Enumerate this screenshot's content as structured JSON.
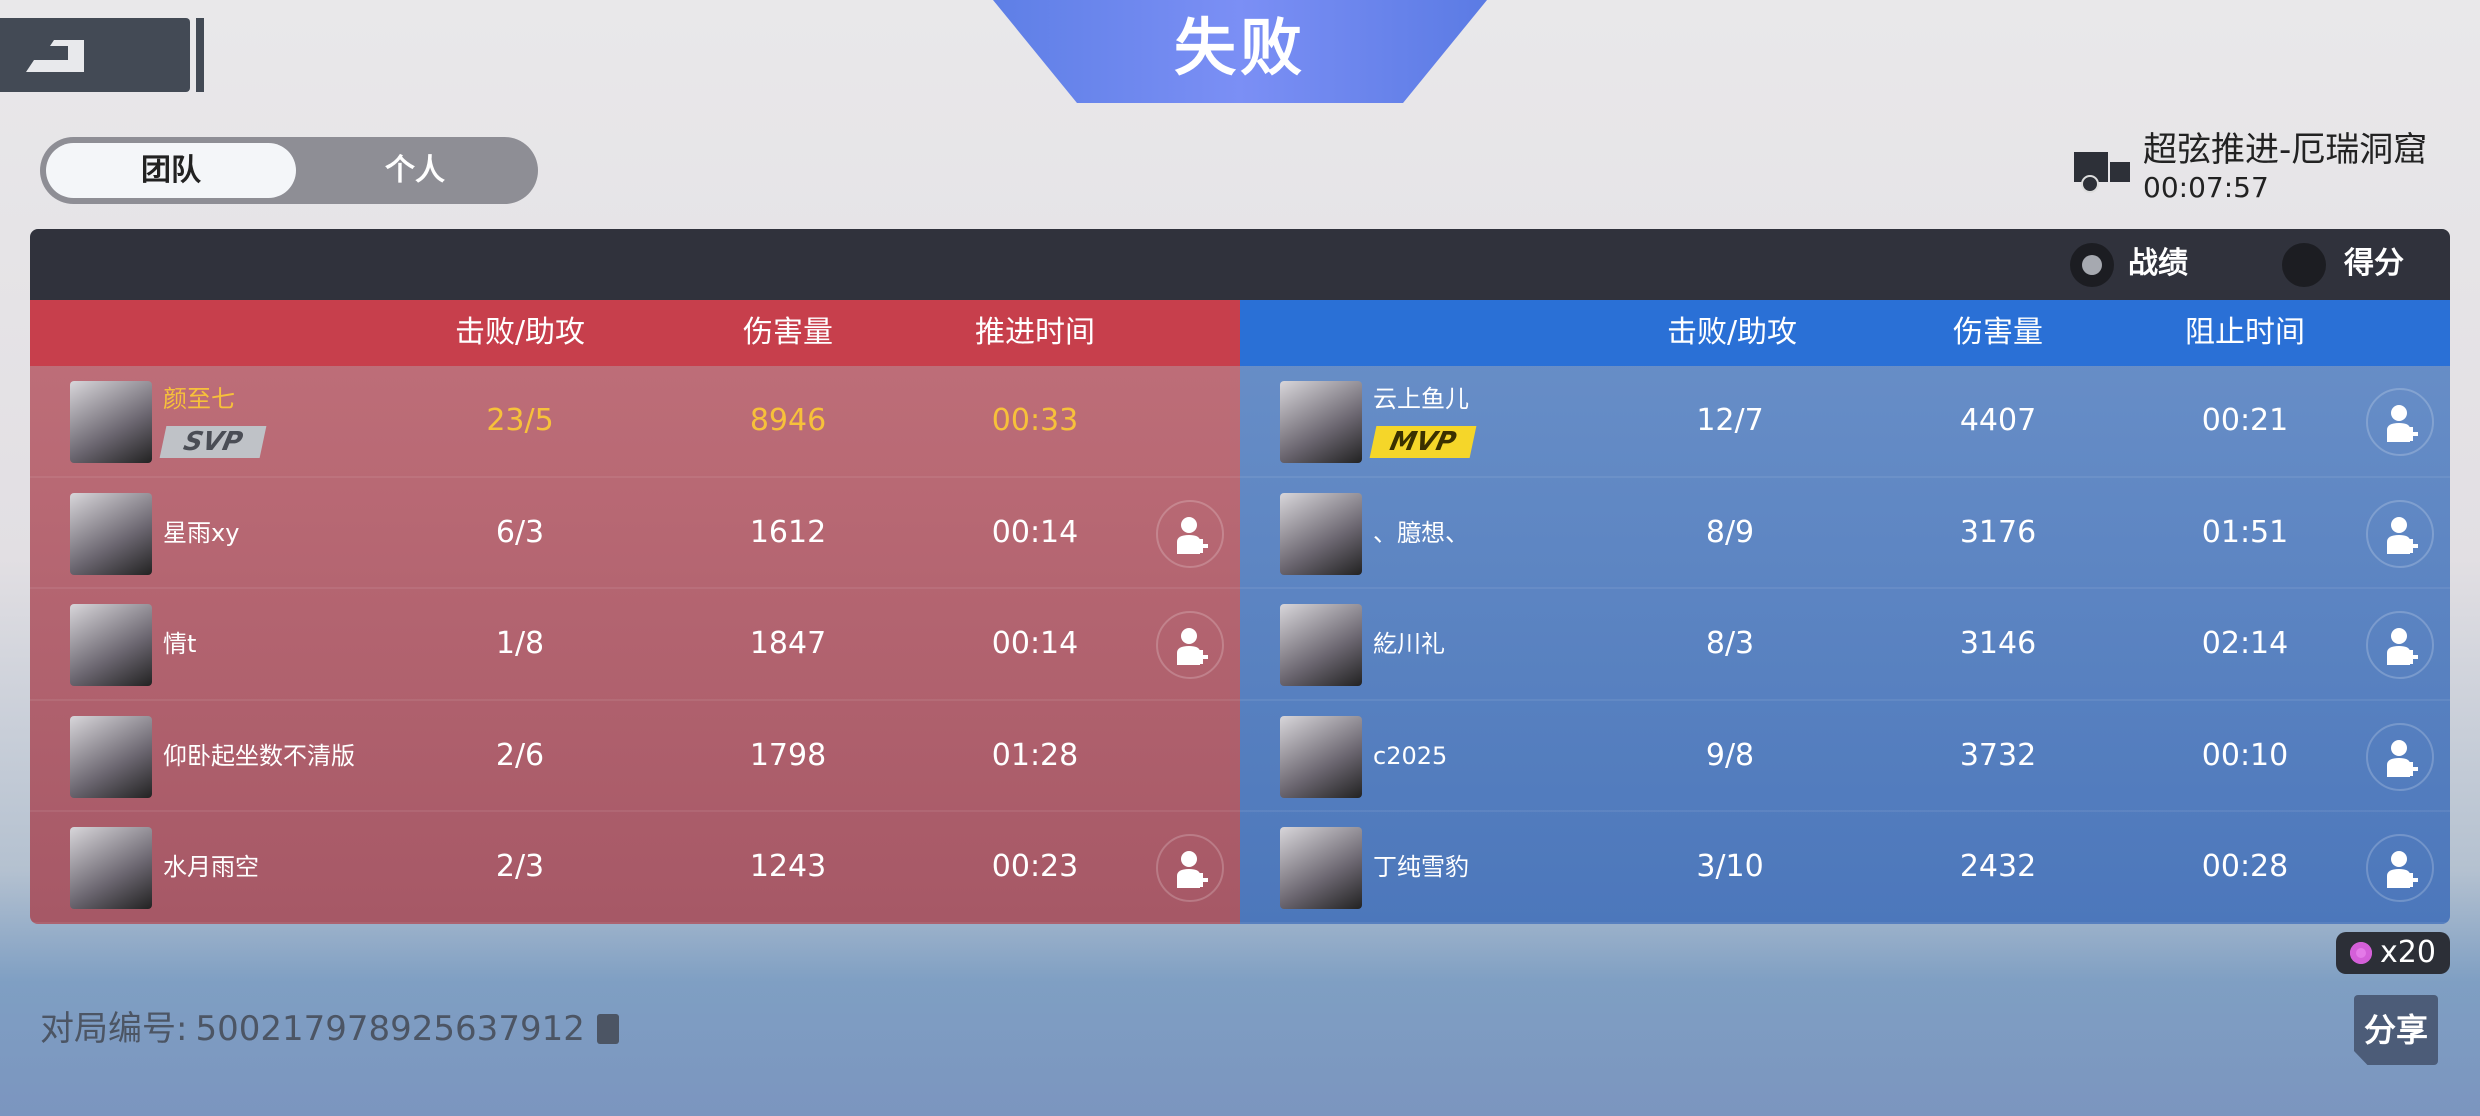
{
  "header": {
    "title": "失败"
  },
  "tabs": [
    {
      "label": "团队",
      "active": true
    },
    {
      "label": "个人",
      "active": false
    }
  ],
  "mode": {
    "name": "超弦推进-厄瑞洞窟",
    "time": "00:07:57"
  },
  "view_toggle": [
    {
      "label": "战绩",
      "selected": true
    },
    {
      "label": "得分",
      "selected": false
    }
  ],
  "red_team": {
    "color": "#c73f4c",
    "columns": [
      "击败/助攻",
      "伤害量",
      "推进时间"
    ],
    "players": [
      {
        "name": "颜至七",
        "badge": "SVP",
        "ka": "23/5",
        "damage": "8946",
        "time": "00:33",
        "add_friend": false
      },
      {
        "name": "星雨xy",
        "badge": "",
        "ka": "6/3",
        "damage": "1612",
        "time": "00:14",
        "add_friend": true
      },
      {
        "name": "情t",
        "badge": "",
        "ka": "1/8",
        "damage": "1847",
        "time": "00:14",
        "add_friend": true
      },
      {
        "name": "仰卧起坐数不清版",
        "badge": "",
        "ka": "2/6",
        "damage": "1798",
        "time": "01:28",
        "add_friend": false
      },
      {
        "name": "水月雨空",
        "badge": "",
        "ka": "2/3",
        "damage": "1243",
        "time": "00:23",
        "add_friend": true
      }
    ]
  },
  "blue_team": {
    "color": "#2a70d6",
    "columns": [
      "击败/助攻",
      "伤害量",
      "阻止时间"
    ],
    "players": [
      {
        "name": "云上鱼儿",
        "badge": "MVP",
        "ka": "12/7",
        "damage": "4407",
        "time": "00:21",
        "add_friend": true
      },
      {
        "name": "、臆想、",
        "badge": "",
        "ka": "8/9",
        "damage": "3176",
        "time": "01:51",
        "add_friend": true
      },
      {
        "name": "紇川礼",
        "badge": "",
        "ka": "8/3",
        "damage": "3146",
        "time": "02:14",
        "add_friend": true
      },
      {
        "name": "c2025",
        "badge": "",
        "ka": "9/8",
        "damage": "3732",
        "time": "00:10",
        "add_friend": true
      },
      {
        "name": "丁纯雪豹",
        "badge": "",
        "ka": "3/10",
        "damage": "2432",
        "time": "00:28",
        "add_friend": true
      }
    ]
  },
  "footer": {
    "match_label": "对局编号:",
    "match_id": "500217978925637912",
    "reward": "x20",
    "share_label": "分享"
  }
}
